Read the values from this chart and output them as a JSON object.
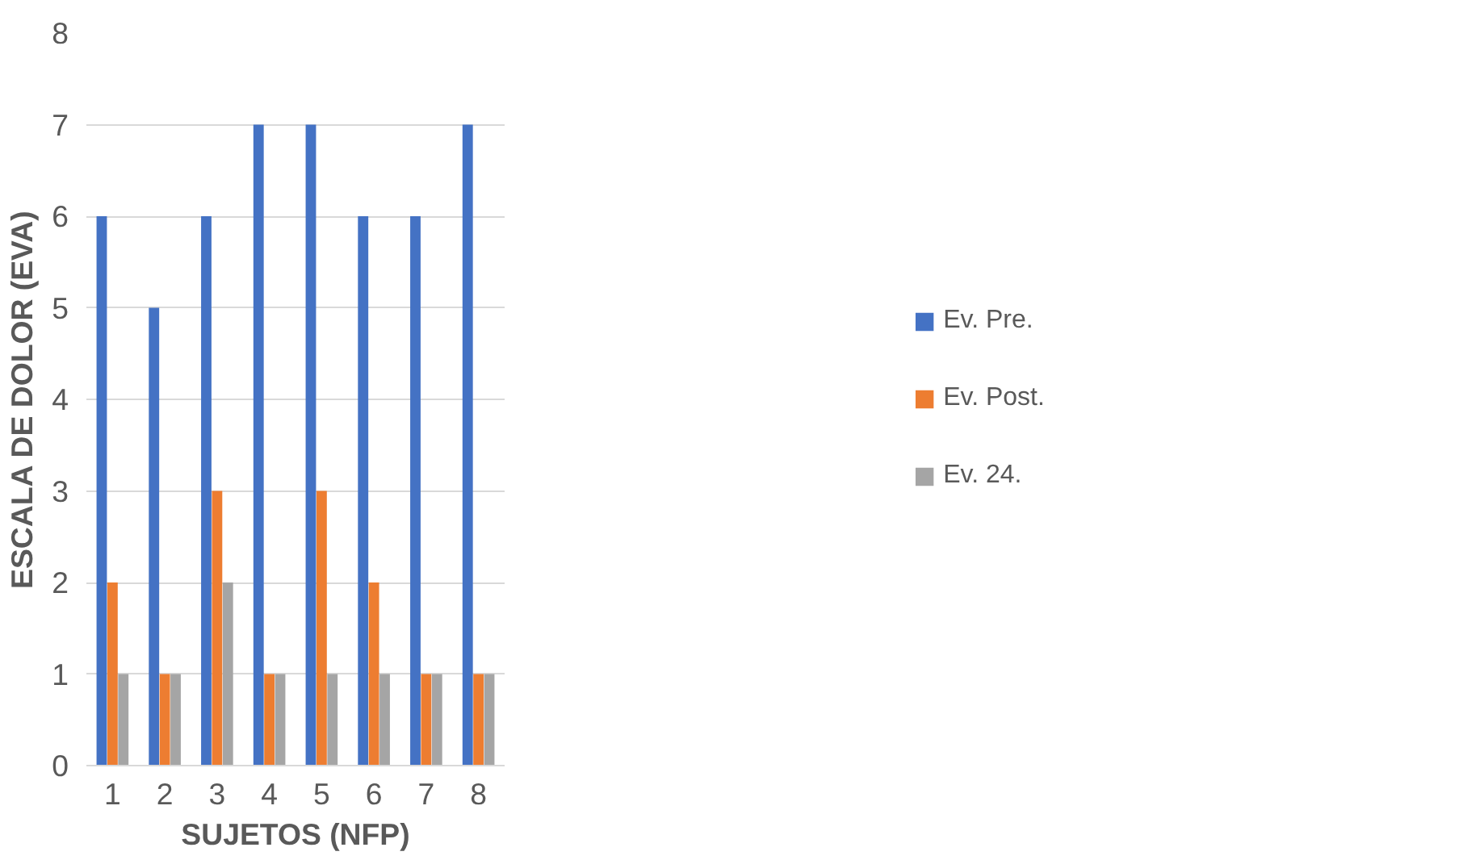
{
  "chart_data": {
    "type": "bar",
    "xlabel": "SUJETOS (NFP)",
    "ylabel": "ESCALA DE DOLOR (EVA)",
    "categories": [
      "1",
      "2",
      "3",
      "4",
      "5",
      "6",
      "7",
      "8"
    ],
    "series": [
      {
        "name": "Ev. Pre.",
        "color": "#4472c4",
        "values": [
          6,
          5,
          6,
          7,
          7,
          6,
          6,
          7
        ]
      },
      {
        "name": "Ev. Post.",
        "color": "#ed7d31",
        "values": [
          2,
          1,
          3,
          1,
          3,
          2,
          1,
          1
        ]
      },
      {
        "name": "Ev. 24.",
        "color": "#a5a5a5",
        "values": [
          1,
          1,
          2,
          1,
          1,
          1,
          1,
          1
        ]
      }
    ],
    "ylim": [
      0,
      8
    ],
    "yticks": [
      0,
      1,
      2,
      3,
      4,
      5,
      6,
      7,
      8
    ],
    "grid": "y",
    "legend": "right"
  }
}
